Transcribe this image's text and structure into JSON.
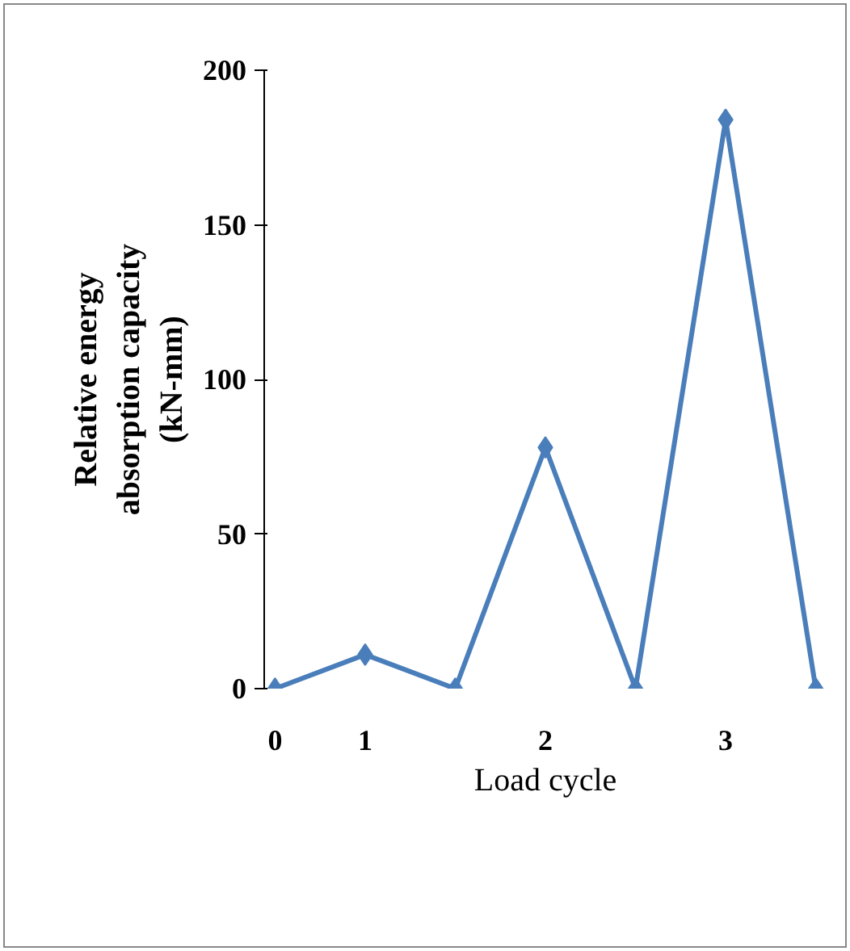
{
  "chart_data": {
    "type": "line",
    "xlabel": "Load cycle",
    "ylabel": "Relative energy\nabsorption capacity\n(kN-mm)",
    "categories": [
      "0",
      "1",
      null,
      "2",
      null,
      "3",
      null
    ],
    "series": [
      {
        "color": "#4a7ebb",
        "values": [
          0,
          11,
          0,
          78,
          0,
          184,
          0
        ]
      }
    ],
    "ylim": [
      0,
      200
    ],
    "yticks": [
      0,
      50,
      100,
      150,
      200
    ],
    "marker": "diamond",
    "line_style": "solid"
  }
}
